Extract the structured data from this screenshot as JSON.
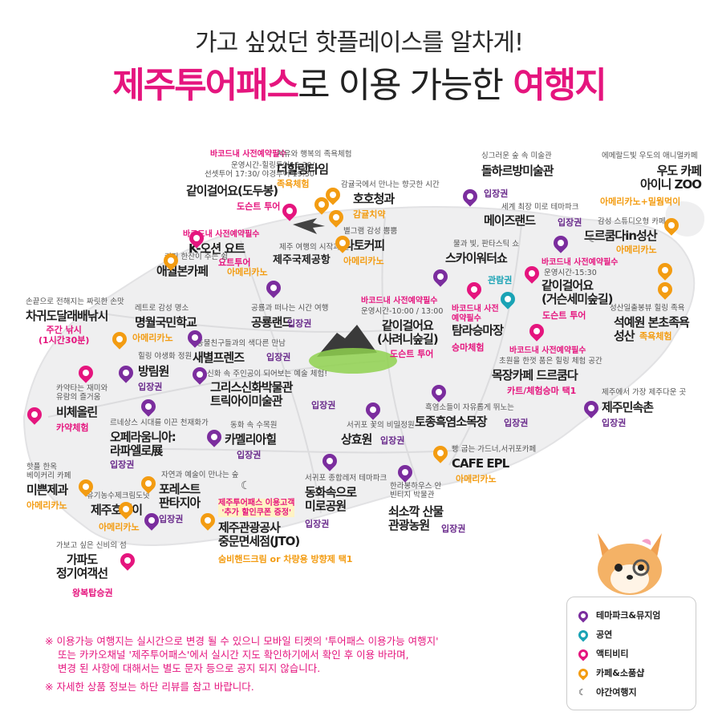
{
  "header": {
    "subtitle": "가고 싶었던 핫플레이스를 알차게!",
    "title_pink_1": "제주투어패스",
    "title_dark": "로 이용 가능한",
    "title_pink_2": "여행지"
  },
  "places": [
    {
      "id": "gachi-dodu",
      "req": "바코드내 사전예약필수",
      "desc": "운영시간-힐링투어15:30/\n선셋투어 17:30/ 야경투어 19:30",
      "name": "같이걸어요(도두봉)",
      "tag": "도슨트 투어",
      "cat": "activity"
    },
    {
      "id": "deohilling",
      "desc": "치유와 행복의 족욕체험",
      "name": "더힐링타임",
      "tag": "족욕체험",
      "cat": "cafe"
    },
    {
      "id": "hohocheong",
      "desc": "감귤국에서 만나는 향긋한 시간",
      "name": "호호청과",
      "tag": "감귤치약",
      "cat": "cafe"
    },
    {
      "id": "dolharubang",
      "desc": "싱그러운 숲 속 미술관",
      "name": "돌하르방미술관",
      "tag": "입장권",
      "cat": "theme"
    },
    {
      "id": "udo-zoo",
      "desc": "에메랄드빛 우도의 애니멀카페",
      "name": "우도 카페\n아이니 ZOO",
      "tag": "아메리카노+밀웜먹이",
      "cat": "cafe"
    },
    {
      "id": "maze",
      "desc": "세계 최장 미로 테마파크",
      "name": "메이즈랜드",
      "tag": "입장권",
      "cat": "theme"
    },
    {
      "id": "dream",
      "desc": "감성 스튜디오형 카페",
      "name": "드르쿰다in성산",
      "tag": "아메리카노",
      "cat": "cafe"
    },
    {
      "id": "koceon",
      "req": "바코드내 사전예약필수",
      "name": "K-오션 요트",
      "tag": "요트투어",
      "cat": "activity"
    },
    {
      "id": "airport",
      "desc": "제주 여행의 시작과 끝",
      "name": "제주국제공항"
    },
    {
      "id": "latte",
      "desc": "별그램 감성 뿜뿜",
      "name": "라토커피",
      "tag": "아메리카노",
      "cat": "cafe"
    },
    {
      "id": "skywalk",
      "desc": "물과 빛, 판타스틱 쇼",
      "name": "스카이워터쇼",
      "tag": "관람권",
      "cat": "show"
    },
    {
      "id": "gachi-gusu",
      "req": "바코드내 사전예약필수",
      "desc": "운영시간-15:30",
      "name": "같이걸어요\n(거슨세미숲길)",
      "tag": "도슨트 투어",
      "cat": "activity"
    },
    {
      "id": "aewol",
      "desc": "커피 한잔이 주는 쉼",
      "name": "애월본카페",
      "tag": "아메리카노",
      "cat": "cafe"
    },
    {
      "id": "chagwido",
      "desc": "손끝으로 전해지는 짜릿한 손맛",
      "name": "차귀도달래배낚시",
      "tag": "주간 낚시\n(1시간30분)",
      "cat": "activity"
    },
    {
      "id": "myeongwol",
      "desc": "레트로 감성 명소",
      "name": "명월국민학교",
      "tag": "아메리카노",
      "cat": "cafe"
    },
    {
      "id": "gongryong",
      "desc": "공룡과 떠나는 시간 여행",
      "name": "공룡랜드",
      "tag": "입장권",
      "cat": "theme"
    },
    {
      "id": "gachi-saryeoni",
      "req": "바코드내 사전예약필수",
      "desc": "운영시간-10:00 / 13:00",
      "name": "같이걸어요\n(사려니숲길)",
      "tag": "도슨트 투어",
      "cat": "activity"
    },
    {
      "id": "tamla",
      "req": "바코드내 사전예약필수",
      "name": "탐라승마장",
      "tag": "승마체험",
      "cat": "activity"
    },
    {
      "id": "seokyewon",
      "desc": "성산일출봉뷰 힐링 족욕",
      "name": "석예원 본초족욕\n성산",
      "tag": "족욕체험",
      "cat": "cafe"
    },
    {
      "id": "saebyeol",
      "desc": "동물친구들과의 색다른 만남",
      "name": "새별프렌즈",
      "tag": "입장권",
      "cat": "theme"
    },
    {
      "id": "bangrim",
      "desc": "힐링 야생화 정원",
      "name": "방림원",
      "tag": "입장권",
      "cat": "theme"
    },
    {
      "id": "mokjang",
      "req": "바코드내 사전예약필수",
      "desc": "초원을 한껏 품은 힐링 체험 공간",
      "name": "목장카페 드르쿰다",
      "tag": "카트/체험승마 택1",
      "cat": "activity"
    },
    {
      "id": "greek",
      "desc": "신화 속 주인공이 되어보는 예술 체험!",
      "name": "그리스신화박물관\n트릭아이미술관",
      "tag": "입장권",
      "cat": "theme"
    },
    {
      "id": "bichejeolin",
      "desc": "카약타는 재미와\n유람의 즐거움",
      "name": "비체올린",
      "tag": "카약체험",
      "cat": "activity"
    },
    {
      "id": "minsokchon",
      "desc": "제주에서 가장 제주다운 곳",
      "name": "제주민속촌",
      "tag": "입장권",
      "cat": "theme"
    },
    {
      "id": "totomheuk",
      "desc": "흑염소들이 자유롭게 뛰노는",
      "name": "토종흑염소목장",
      "tag": "입장권",
      "cat": "theme"
    },
    {
      "id": "orange",
      "desc": "르네상스 시대를 이끈 천재화가",
      "name": "오페라움니아:\n라파엘로展",
      "tag": "입장권",
      "cat": "theme"
    },
    {
      "id": "camellia",
      "desc": "동화 속 수목원",
      "name": "카멜리아힐",
      "tag": "입장권",
      "cat": "theme"
    },
    {
      "id": "sanghyo",
      "desc": "서귀포 꽃의 비밀정원",
      "name": "상효원",
      "tag": "입장권",
      "cat": "theme"
    },
    {
      "id": "cafe-epl",
      "desc": "빵 굽는 가드너,서귀포카페",
      "name": "CAFE EPL",
      "tag": "아메리카노",
      "cat": "cafe"
    },
    {
      "id": "mibeon",
      "desc": "핫플 한옥\n베이커리 카페",
      "name": "미쁜제과",
      "tag": "아메리카노",
      "cat": "cafe"
    },
    {
      "id": "forest",
      "desc": "자연과 예술이 만나는 숲",
      "name": "포레스트\n판타지아",
      "tag": "입장권",
      "cat": "theme"
    },
    {
      "id": "horangi",
      "desc": "유기농수제크림도넛",
      "name": "제주호랭이",
      "tag": "아메리카노",
      "cat": "cafe"
    },
    {
      "id": "donghwa",
      "desc": "서귀포 종합레저 테마파크",
      "name": "동화속으로\n미로공원",
      "tag": "입장권",
      "cat": "theme"
    },
    {
      "id": "soesokkak",
      "desc": "한라봉하우스 안\n빈티지 박물관",
      "name": "쇠소깍 산물\n관광농원",
      "tag": "입장권",
      "cat": "theme"
    },
    {
      "id": "jto",
      "req": "제주투어패스 이용고객\n'추가 할인쿠폰 증정'",
      "name": "제주관광공사\n중문면세점(JTO)",
      "tag": "숨비핸드크림 or 차량용 방향제 택1",
      "cat": "cafe"
    },
    {
      "id": "gapado",
      "desc": "가보고 싶은 신비의 섬",
      "name": "가파도\n정기여객선",
      "tag": "왕복탑승권",
      "cat": "activity"
    }
  ],
  "legend": [
    {
      "label": "테마파크&뮤지엄",
      "color": "#7b2d9e"
    },
    {
      "label": "공연",
      "color": "#1aa3b5"
    },
    {
      "label": "액티비티",
      "color": "#e5157e"
    },
    {
      "label": "카페&소품샵",
      "color": "#f39c12"
    },
    {
      "label": "야간여행지",
      "color": "#555555"
    }
  ],
  "notes": [
    "※ 이용가능 여행지는 실시간으로 변경 될 수 있으니 모바일 티켓의 '투어패스 이용가능 여행지'",
    "또는 카카오채널 '제주투어패스'에서 실시간 지도 확인하기에서 확인 후 이용 바라며,",
    "변경 된 사항에 대해서는 별도 문자 등으로 공지 되지 않습니다.",
    "※ 자세한 상품 정보는 하단 리뷰를 참고 바랍니다."
  ]
}
